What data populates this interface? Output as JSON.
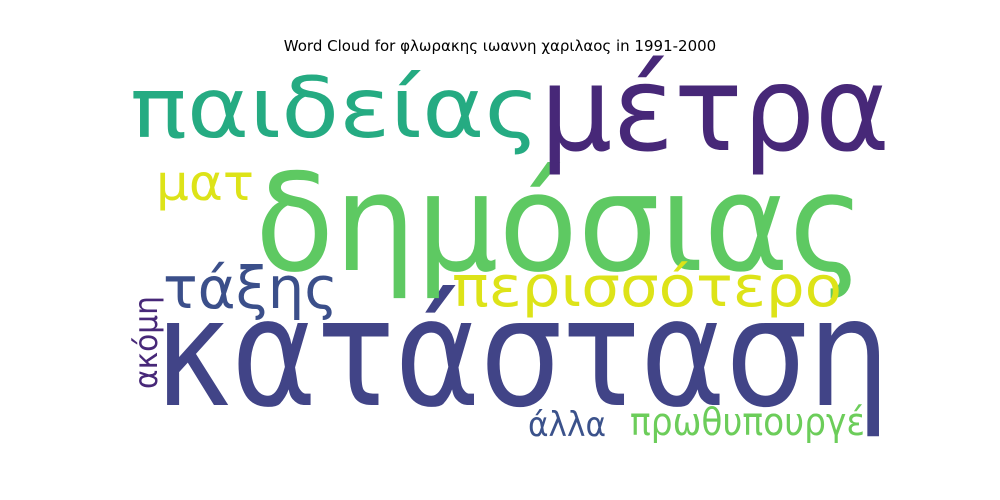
{
  "title": "Word Cloud for φλωρακης ιωαννη χαριλαος in 1991-2000",
  "words": [
    {
      "text": "κατάσταση",
      "color": "#414487"
    },
    {
      "text": "δημόσιας",
      "color": "#5ec962"
    },
    {
      "text": "μέτρα",
      "color": "#472878"
    },
    {
      "text": "παιδείας",
      "color": "#25ab82"
    },
    {
      "text": "περισσότερο",
      "color": "#dde318"
    },
    {
      "text": "τάξης",
      "color": "#3b4f8a"
    },
    {
      "text": "ματ",
      "color": "#dde318"
    },
    {
      "text": "ακόμη",
      "color": "#472878"
    },
    {
      "text": "άλλα",
      "color": "#3b528b"
    },
    {
      "text": "πρωθυπουργέ",
      "color": "#6ccd5a"
    }
  ]
}
